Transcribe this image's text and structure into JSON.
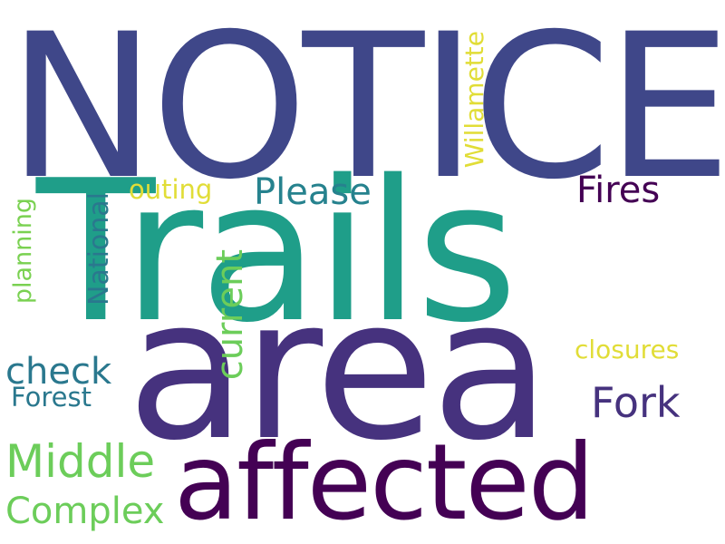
{
  "words": {
    "notice": {
      "text": "NOTICE",
      "color": "#3f4789"
    },
    "trails": {
      "text": "Trails",
      "color": "#1f9e89"
    },
    "area": {
      "text": "area",
      "color": "#46327e"
    },
    "affected": {
      "text": "affected",
      "color": "#440154"
    },
    "please": {
      "text": "Please",
      "color": "#26828e"
    },
    "fires": {
      "text": "Fires",
      "color": "#440154"
    },
    "outing": {
      "text": "outing",
      "color": "#e1dd37"
    },
    "willamette": {
      "text": "Willamette",
      "color": "#e1dd37"
    },
    "planning": {
      "text": "planning",
      "color": "#7ad151"
    },
    "national": {
      "text": "National",
      "color": "#2a788e"
    },
    "current": {
      "text": "current",
      "color": "#6ccd5a"
    },
    "check": {
      "text": "check",
      "color": "#2a788e"
    },
    "forest": {
      "text": "Forest",
      "color": "#2a788e"
    },
    "closures": {
      "text": "closures",
      "color": "#e1dd37"
    },
    "fork": {
      "text": "Fork",
      "color": "#46327e"
    },
    "middle": {
      "text": "Middle",
      "color": "#6ccd5a"
    },
    "complex": {
      "text": "Complex",
      "color": "#6ccd5a"
    }
  }
}
